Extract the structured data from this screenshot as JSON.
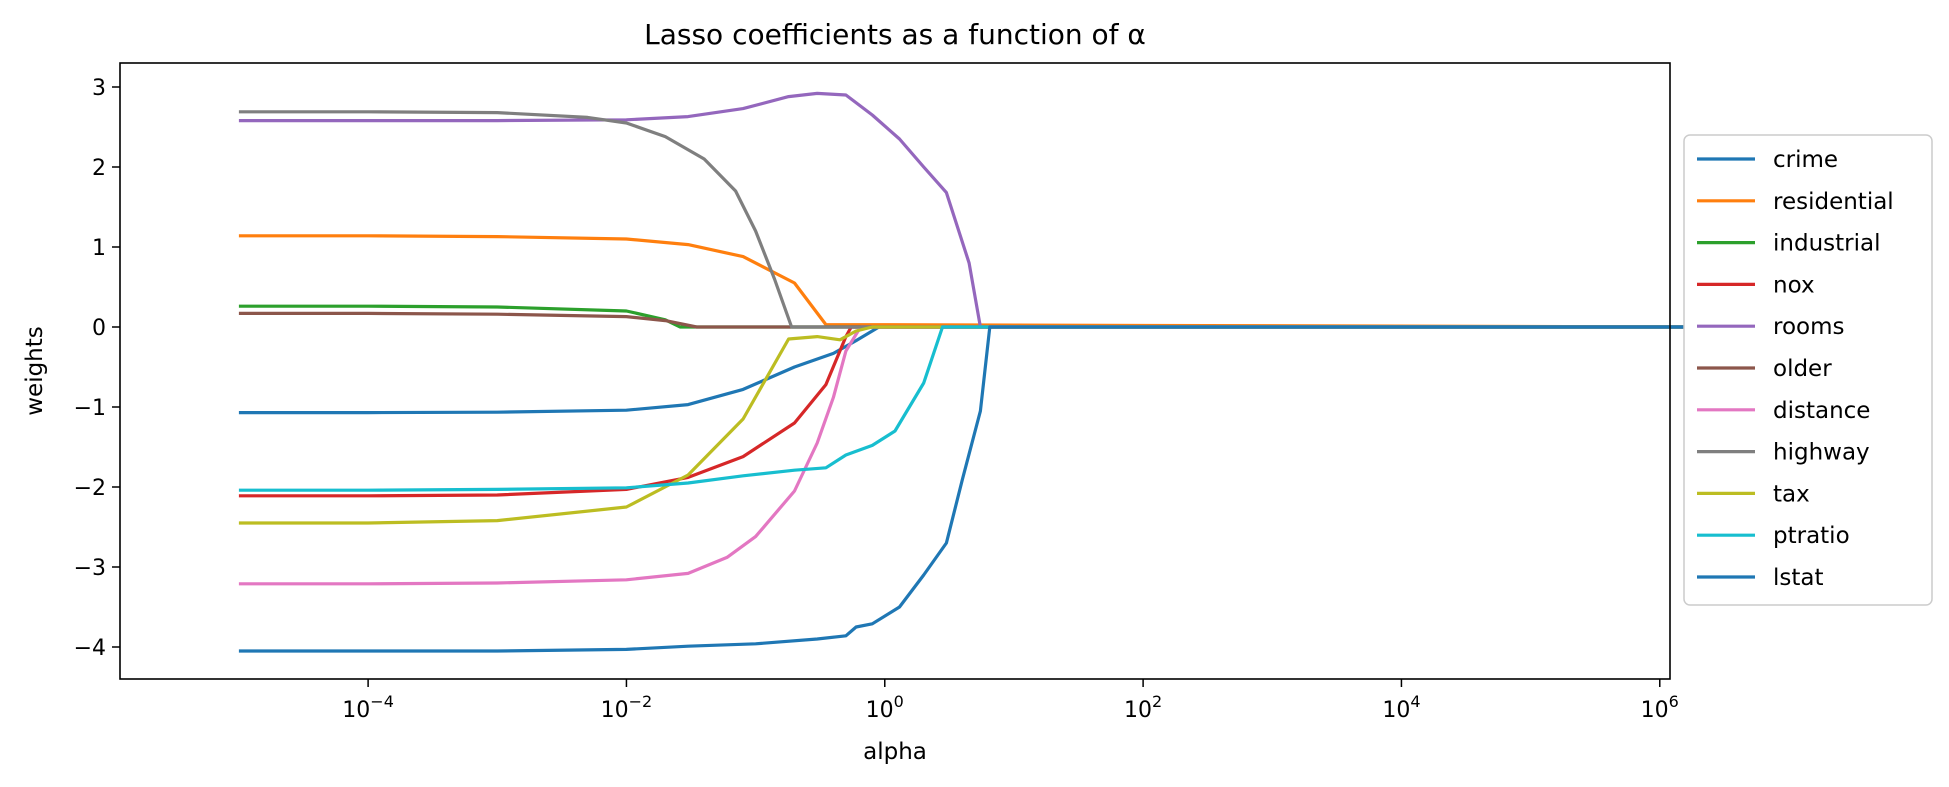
{
  "chart_data": {
    "type": "line",
    "title": "Lasso coefficients as a function of α",
    "xlabel": "alpha",
    "ylabel": "weights",
    "xscale": "log",
    "xlim": [
      1.2e-06,
      1200000.0
    ],
    "ylim": [
      -4.4,
      3.3
    ],
    "grid": false,
    "legend_position": "outside right",
    "xticks": [
      {
        "value": 0.0001,
        "base": "10",
        "exp": "−4"
      },
      {
        "value": 0.01,
        "base": "10",
        "exp": "−2"
      },
      {
        "value": 1,
        "base": "10",
        "exp": "0"
      },
      {
        "value": 100,
        "base": "10",
        "exp": "2"
      },
      {
        "value": 10000,
        "base": "10",
        "exp": "4"
      },
      {
        "value": 1000000,
        "base": "10",
        "exp": "6"
      }
    ],
    "yticks": [
      {
        "value": 3,
        "label": "3"
      },
      {
        "value": 2,
        "label": "2"
      },
      {
        "value": 1,
        "label": "1"
      },
      {
        "value": 0,
        "label": "0"
      },
      {
        "value": -1,
        "label": "−1"
      },
      {
        "value": -2,
        "label": "−2"
      },
      {
        "value": -3,
        "label": "−3"
      },
      {
        "value": -4,
        "label": "−4"
      }
    ],
    "series": [
      {
        "name": "crime",
        "color": "#1f77b4",
        "points": [
          [
            1e-05,
            -1.07
          ],
          [
            0.0001,
            -1.07
          ],
          [
            0.001,
            -1.065
          ],
          [
            0.01,
            -1.04
          ],
          [
            0.03,
            -0.97
          ],
          [
            0.08,
            -0.78
          ],
          [
            0.2,
            -0.5
          ],
          [
            0.4,
            -0.33
          ],
          [
            0.6,
            -0.17
          ],
          [
            0.9,
            0
          ],
          [
            3500000,
            0
          ]
        ]
      },
      {
        "name": "residential",
        "color": "#ff7f0e",
        "points": [
          [
            1e-05,
            1.14
          ],
          [
            0.0001,
            1.14
          ],
          [
            0.001,
            1.13
          ],
          [
            0.01,
            1.1
          ],
          [
            0.03,
            1.03
          ],
          [
            0.08,
            0.88
          ],
          [
            0.2,
            0.55
          ],
          [
            0.35,
            0.03
          ],
          [
            3500000,
            0
          ]
        ]
      },
      {
        "name": "industrial",
        "color": "#2ca02c",
        "points": [
          [
            1e-05,
            0.26
          ],
          [
            0.0001,
            0.26
          ],
          [
            0.001,
            0.25
          ],
          [
            0.01,
            0.2
          ],
          [
            0.02,
            0.09
          ],
          [
            0.026,
            0
          ],
          [
            3500000,
            0
          ]
        ]
      },
      {
        "name": "nox",
        "color": "#d62728",
        "points": [
          [
            1e-05,
            -2.11
          ],
          [
            0.0001,
            -2.11
          ],
          [
            0.001,
            -2.1
          ],
          [
            0.01,
            -2.03
          ],
          [
            0.03,
            -1.88
          ],
          [
            0.08,
            -1.62
          ],
          [
            0.2,
            -1.2
          ],
          [
            0.35,
            -0.72
          ],
          [
            0.5,
            -0.12
          ],
          [
            0.55,
            0
          ],
          [
            3500000,
            0
          ]
        ]
      },
      {
        "name": "rooms",
        "color": "#9467bd",
        "points": [
          [
            1e-05,
            2.58
          ],
          [
            0.0001,
            2.58
          ],
          [
            0.001,
            2.58
          ],
          [
            0.01,
            2.59
          ],
          [
            0.03,
            2.63
          ],
          [
            0.08,
            2.73
          ],
          [
            0.18,
            2.88
          ],
          [
            0.3,
            2.92
          ],
          [
            0.5,
            2.9
          ],
          [
            0.8,
            2.65
          ],
          [
            1.3,
            2.35
          ],
          [
            2,
            2
          ],
          [
            3,
            1.68
          ],
          [
            4.5,
            0.8
          ],
          [
            5.5,
            0
          ],
          [
            3500000,
            0
          ]
        ]
      },
      {
        "name": "older",
        "color": "#8c564b",
        "points": [
          [
            1e-05,
            0.17
          ],
          [
            0.0001,
            0.17
          ],
          [
            0.001,
            0.16
          ],
          [
            0.01,
            0.13
          ],
          [
            0.02,
            0.08
          ],
          [
            0.035,
            0
          ],
          [
            3500000,
            0
          ]
        ]
      },
      {
        "name": "distance",
        "color": "#e377c2",
        "points": [
          [
            1e-05,
            -3.21
          ],
          [
            0.0001,
            -3.21
          ],
          [
            0.001,
            -3.2
          ],
          [
            0.01,
            -3.16
          ],
          [
            0.03,
            -3.08
          ],
          [
            0.06,
            -2.88
          ],
          [
            0.1,
            -2.62
          ],
          [
            0.2,
            -2.05
          ],
          [
            0.3,
            -1.45
          ],
          [
            0.4,
            -0.88
          ],
          [
            0.5,
            -0.3
          ],
          [
            0.65,
            0
          ],
          [
            3500000,
            0
          ]
        ]
      },
      {
        "name": "highway",
        "color": "#7f7f7f",
        "points": [
          [
            1e-05,
            2.69
          ],
          [
            0.0001,
            2.69
          ],
          [
            0.001,
            2.68
          ],
          [
            0.005,
            2.62
          ],
          [
            0.01,
            2.55
          ],
          [
            0.02,
            2.38
          ],
          [
            0.04,
            2.1
          ],
          [
            0.07,
            1.7
          ],
          [
            0.1,
            1.2
          ],
          [
            0.14,
            0.6
          ],
          [
            0.19,
            0
          ],
          [
            3500000,
            0
          ]
        ]
      },
      {
        "name": "tax",
        "color": "#bcbd22",
        "points": [
          [
            1e-05,
            -2.45
          ],
          [
            0.0001,
            -2.45
          ],
          [
            0.001,
            -2.42
          ],
          [
            0.01,
            -2.25
          ],
          [
            0.03,
            -1.85
          ],
          [
            0.08,
            -1.15
          ],
          [
            0.18,
            -0.15
          ],
          [
            0.3,
            -0.12
          ],
          [
            0.45,
            -0.16
          ],
          [
            0.6,
            -0.05
          ],
          [
            0.8,
            0
          ],
          [
            3500000,
            0
          ]
        ]
      },
      {
        "name": "ptratio",
        "color": "#17becf",
        "points": [
          [
            1e-05,
            -2.04
          ],
          [
            0.0001,
            -2.04
          ],
          [
            0.001,
            -2.03
          ],
          [
            0.01,
            -2.01
          ],
          [
            0.03,
            -1.95
          ],
          [
            0.08,
            -1.86
          ],
          [
            0.2,
            -1.79
          ],
          [
            0.35,
            -1.76
          ],
          [
            0.5,
            -1.6
          ],
          [
            0.8,
            -1.48
          ],
          [
            1.2,
            -1.3
          ],
          [
            2,
            -0.7
          ],
          [
            2.8,
            0
          ],
          [
            3500000,
            0
          ]
        ]
      },
      {
        "name": "lstat",
        "color": "#1f77b4",
        "points": [
          [
            1e-05,
            -4.05
          ],
          [
            0.0001,
            -4.05
          ],
          [
            0.001,
            -4.05
          ],
          [
            0.01,
            -4.03
          ],
          [
            0.03,
            -3.99
          ],
          [
            0.1,
            -3.96
          ],
          [
            0.3,
            -3.9
          ],
          [
            0.5,
            -3.86
          ],
          [
            0.6,
            -3.75
          ],
          [
            0.8,
            -3.71
          ],
          [
            1.3,
            -3.5
          ],
          [
            2,
            -3.1
          ],
          [
            3,
            -2.7
          ],
          [
            4,
            -1.9
          ],
          [
            5.5,
            -1.05
          ],
          [
            6.5,
            0
          ],
          [
            3500000,
            0
          ]
        ]
      }
    ]
  }
}
